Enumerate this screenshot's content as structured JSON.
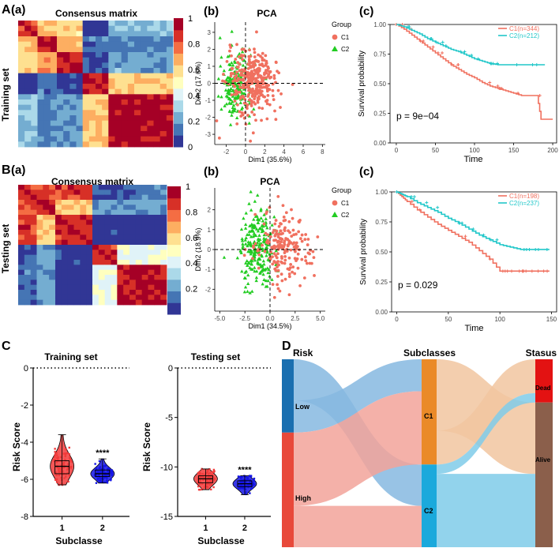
{
  "colors": {
    "c1": "#f0705f",
    "c2": "#21c7c9",
    "pca_c2": "#22cc22",
    "blue": "#1414e6",
    "red": "#f23b3b",
    "dead": "#e41515",
    "alive": "#8a5e4b"
  },
  "panelA": {
    "letter": "A",
    "row_label": "Training set",
    "heatmap": {
      "sub": "(a)",
      "title": "Consensus matrix",
      "colorbar_ticks": [
        "1",
        "0.8",
        "0.6",
        "0.4",
        "0.2",
        "0"
      ],
      "block_split": 0.42,
      "colors": [
        "#313695",
        "#4575b4",
        "#74add1",
        "#abd9e9",
        "#e0f3f8",
        "#ffffbf",
        "#fee090",
        "#fdae61",
        "#f46d43",
        "#d73027",
        "#a50026"
      ]
    },
    "pca": {
      "sub": "(b)",
      "title": "PCA",
      "xlabel": "Dim1 (35.6%)",
      "ylabel": "Dim2 (17.6%)",
      "xticks": [
        "-2",
        "0",
        "2",
        "4",
        "6",
        "8"
      ],
      "yticks": [
        "3",
        "2",
        "1",
        "0",
        "-1",
        "-2",
        "-3"
      ],
      "legend_title": "Group",
      "legend": [
        "C1",
        "C2"
      ]
    },
    "km": {
      "sub": "(c)",
      "xlabel": "Time",
      "ylabel": "Survival probability",
      "xticks": [
        "0",
        "50",
        "100",
        "150",
        "200"
      ],
      "yticks": [
        "1.00",
        "0.75",
        "0.50",
        "0.25",
        "0.00"
      ],
      "legend": [
        "C1(n=344)",
        "C2(n=212)"
      ],
      "pval": "p = 9e−04"
    }
  },
  "panelB": {
    "letter": "B",
    "row_label": "Testing set",
    "heatmap": {
      "sub": "(a)",
      "title": "Consensus matrix",
      "colorbar_ticks": [
        "1",
        "0.8",
        "0.6",
        "0.4",
        "0.2"
      ],
      "block_split": 0.49,
      "colors": [
        "#313695",
        "#4575b4",
        "#74add1",
        "#abd9e9",
        "#e0f3f8",
        "#ffffbf",
        "#fee090",
        "#fdae61",
        "#f46d43",
        "#d73027",
        "#a50026"
      ]
    },
    "pca": {
      "sub": "(b)",
      "title": "PCA",
      "xlabel": "Dim1 (34.5%)",
      "ylabel": "Dim2 (18.9%)",
      "xticks": [
        "-5.0",
        "-2.5",
        "0.0",
        "2.5",
        "5.0"
      ],
      "yticks": [
        "2",
        "1",
        "0",
        "-1",
        "-2"
      ],
      "legend_title": "Group",
      "legend": [
        "C1",
        "C2"
      ]
    },
    "km": {
      "sub": "(c)",
      "xlabel": "Time",
      "ylabel": "Survival probability",
      "xticks": [
        "0",
        "50",
        "100",
        "150"
      ],
      "yticks": [
        "1.00",
        "0.75",
        "0.50",
        "0.25",
        "0.00"
      ],
      "legend": [
        "C1(n=198)",
        "C2(n=237)"
      ],
      "pval": "p = 0.029"
    }
  },
  "panelC": {
    "letter": "C",
    "training": {
      "title": "Training set",
      "ylabel": "Risk Score",
      "xlabel": "Subclasse",
      "xticks": [
        "1",
        "2"
      ],
      "yticks": [
        "0",
        "-2",
        "-4",
        "-6",
        "-8"
      ],
      "sig": "****"
    },
    "testing": {
      "title": "Testing set",
      "ylabel": "Risk Score",
      "xlabel": "Subclasse",
      "xticks": [
        "1",
        "2"
      ],
      "yticks": [
        "0",
        "-5",
        "-10",
        "-15"
      ],
      "sig": "****"
    }
  },
  "panelD": {
    "letter": "D",
    "headers": [
      "Risk",
      "Subclasses",
      "Stasus"
    ],
    "risk": [
      "Low",
      "High"
    ],
    "sub": [
      "C1",
      "C2"
    ],
    "status": [
      "Dead",
      "Alive"
    ]
  },
  "chart_data": [
    {
      "type": "heatmap",
      "title": "Consensus matrix",
      "panel": "A(a)",
      "scale": [
        0,
        1
      ],
      "clusters": [
        "C1",
        "C2"
      ]
    },
    {
      "type": "scatter",
      "title": "PCA",
      "panel": "A(b)",
      "xlabel": "Dim1 (35.6%)",
      "ylabel": "Dim2 (17.6%)",
      "xlim": [
        -3.2,
        8.3
      ],
      "ylim": [
        -3.6,
        3.6
      ],
      "series": [
        {
          "name": "C1",
          "n": 344,
          "center": [
            0.8,
            0.1
          ]
        },
        {
          "name": "C2",
          "n": 212,
          "center": [
            -1.0,
            -0.1
          ]
        }
      ]
    },
    {
      "type": "line",
      "title": "Survival",
      "panel": "A(c)",
      "xlabel": "Time",
      "ylabel": "Survival probability",
      "xlim": [
        -8,
        205
      ],
      "ylim": [
        0,
        1
      ],
      "series": [
        {
          "name": "C1(n=344)",
          "x": [
            0,
            10,
            20,
            30,
            40,
            50,
            60,
            70,
            80,
            90,
            100,
            110,
            120,
            130,
            140,
            150,
            160,
            170,
            180,
            185,
            195,
            200
          ],
          "y": [
            1.0,
            0.96,
            0.91,
            0.86,
            0.81,
            0.76,
            0.71,
            0.66,
            0.62,
            0.58,
            0.55,
            0.51,
            0.48,
            0.46,
            0.44,
            0.42,
            0.4,
            0.4,
            0.4,
            0.2,
            0.2,
            0.2
          ]
        },
        {
          "name": "C2(n=212)",
          "x": [
            0,
            10,
            20,
            30,
            40,
            50,
            60,
            70,
            80,
            90,
            100,
            110,
            120,
            130,
            140,
            150,
            160,
            170,
            180,
            190
          ],
          "y": [
            1.0,
            0.98,
            0.95,
            0.92,
            0.88,
            0.85,
            0.82,
            0.79,
            0.77,
            0.74,
            0.71,
            0.69,
            0.67,
            0.66,
            0.66,
            0.66,
            0.66,
            0.66,
            0.66,
            0.66
          ]
        }
      ],
      "pval": "9e-04"
    },
    {
      "type": "scatter",
      "title": "PCA",
      "panel": "B(b)",
      "xlabel": "Dim1 (34.5%)",
      "ylabel": "Dim2 (18.9%)",
      "xlim": [
        -5.5,
        5.5
      ],
      "ylim": [
        -3.1,
        3.1
      ],
      "series": [
        {
          "name": "C1",
          "n": 198,
          "center": [
            1.5,
            0.1
          ]
        },
        {
          "name": "C2",
          "n": 237,
          "center": [
            -1.2,
            -0.1
          ]
        }
      ]
    },
    {
      "type": "line",
      "title": "Survival",
      "panel": "B(c)",
      "xlabel": "Time",
      "ylabel": "Survival probability",
      "xlim": [
        -5,
        155
      ],
      "ylim": [
        0,
        1
      ],
      "series": [
        {
          "name": "C1(n=198)",
          "x": [
            0,
            5,
            10,
            20,
            30,
            40,
            50,
            60,
            70,
            80,
            90,
            100,
            110,
            120,
            130,
            140,
            148
          ],
          "y": [
            1.0,
            0.96,
            0.92,
            0.85,
            0.79,
            0.73,
            0.68,
            0.63,
            0.58,
            0.51,
            0.44,
            0.34,
            0.34,
            0.34,
            0.34,
            0.34,
            0.34
          ]
        },
        {
          "name": "C2(n=237)",
          "x": [
            0,
            5,
            10,
            20,
            30,
            40,
            50,
            60,
            70,
            80,
            90,
            100,
            110,
            120,
            130,
            140,
            148
          ],
          "y": [
            1.0,
            0.98,
            0.96,
            0.91,
            0.87,
            0.83,
            0.78,
            0.74,
            0.69,
            0.64,
            0.6,
            0.56,
            0.54,
            0.52,
            0.52,
            0.52,
            0.52
          ]
        }
      ],
      "pval": "0.029"
    },
    {
      "type": "violin",
      "title": "Training set",
      "panel": "C",
      "ylabel": "Risk Score",
      "xlabel": "Subclasse",
      "ylim": [
        -8,
        0
      ],
      "groups": [
        {
          "name": "1",
          "median": -5.3,
          "q1": -5.7,
          "q3": -5.0,
          "min": -6.3,
          "max": -3.6
        },
        {
          "name": "2",
          "median": -5.7,
          "q1": -5.85,
          "q3": -5.5,
          "min": -6.2,
          "max": -4.9
        }
      ],
      "sig": "****"
    },
    {
      "type": "violin",
      "title": "Testing set",
      "panel": "C",
      "ylabel": "Risk Score",
      "xlabel": "Subclasse",
      "ylim": [
        -15,
        0
      ],
      "groups": [
        {
          "name": "1",
          "median": -11.2,
          "q1": -11.6,
          "q3": -10.9,
          "min": -12.3,
          "max": -10.2
        },
        {
          "name": "2",
          "median": -11.7,
          "q1": -12.0,
          "q3": -11.4,
          "min": -12.8,
          "max": -10.9
        }
      ],
      "sig": "****"
    },
    {
      "type": "sankey",
      "title": "Subclasses",
      "panel": "D",
      "nodes": {
        "Risk": {
          "Low": 0.39,
          "High": 0.61
        },
        "Subclasses": {
          "C1": 0.56,
          "C2": 0.44
        },
        "Stasus": {
          "Dead": 0.23,
          "Alive": 0.77
        }
      },
      "flows": [
        {
          "from": "Low",
          "to": "C1",
          "value": 0.17
        },
        {
          "from": "Low",
          "to": "C2",
          "value": 0.22
        },
        {
          "from": "High",
          "to": "C1",
          "value": 0.39
        },
        {
          "from": "High",
          "to": "C2",
          "value": 0.22
        },
        {
          "from": "C1",
          "to": "Dead",
          "value": 0.18
        },
        {
          "from": "C1",
          "to": "Alive",
          "value": 0.38
        },
        {
          "from": "C2",
          "to": "Dead",
          "value": 0.05
        },
        {
          "from": "C2",
          "to": "Alive",
          "value": 0.39
        }
      ]
    }
  ]
}
